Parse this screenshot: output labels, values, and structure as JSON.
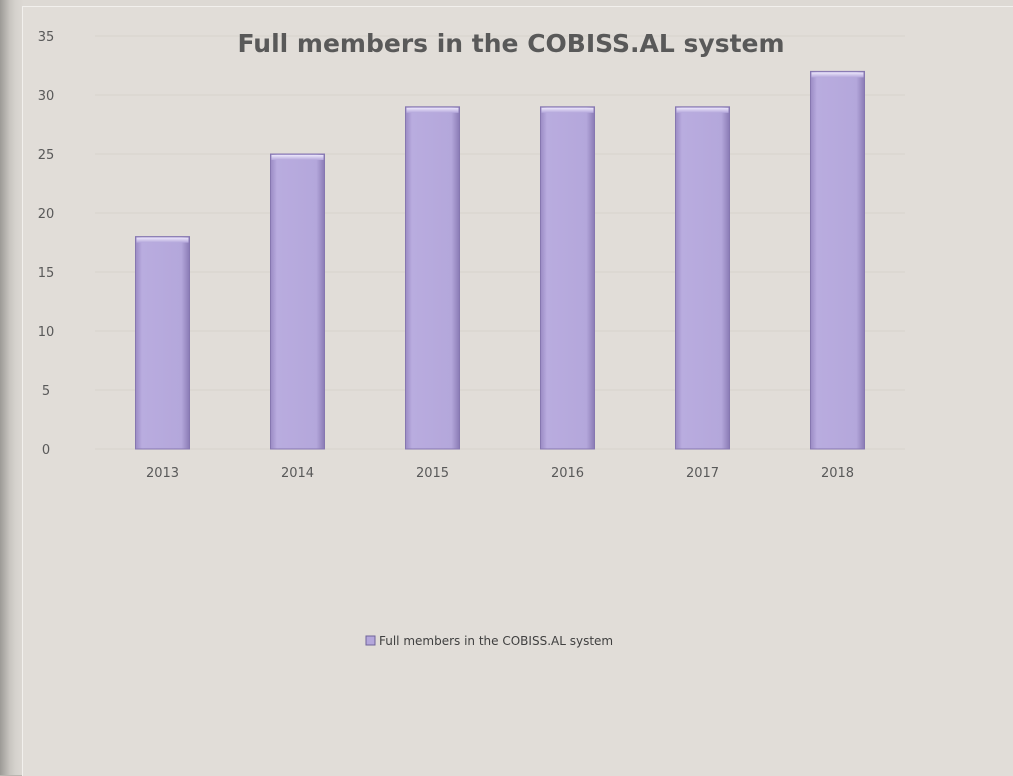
{
  "chart_data": {
    "type": "bar",
    "title": "Full members in the COBISS.AL system",
    "xlabel": "",
    "ylabel": "",
    "categories": [
      "2013",
      "2014",
      "2015",
      "2016",
      "2017",
      "2018"
    ],
    "series": [
      {
        "name": "Full members in the COBISS.AL system",
        "values": [
          18,
          25,
          29,
          29,
          29,
          32
        ],
        "color": "#b4a7db"
      }
    ],
    "ylim": [
      0,
      35
    ],
    "yticks": [
      "0",
      "5",
      "10",
      "15",
      "20",
      "25",
      "30",
      "35"
    ],
    "grid": true,
    "legend_position": "bottom"
  }
}
